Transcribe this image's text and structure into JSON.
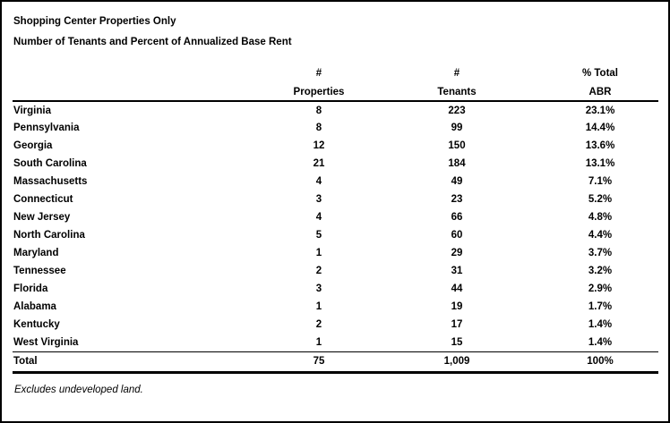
{
  "document": {
    "title_line1": "Shopping Center Properties Only",
    "title_line2": "Number of Tenants and Percent of Annualized Base Rent",
    "footnote": "Excludes undeveloped land."
  },
  "table": {
    "columns": [
      {
        "line1": "",
        "line2": ""
      },
      {
        "line1": "#",
        "line2": "Properties"
      },
      {
        "line1": "#",
        "line2": "Tenants"
      },
      {
        "line1": "% Total",
        "line2": "ABR"
      }
    ],
    "rows": [
      {
        "state": "Virginia",
        "properties": "8",
        "tenants": "223",
        "abr": "23.1%"
      },
      {
        "state": "Pennsylvania",
        "properties": "8",
        "tenants": "99",
        "abr": "14.4%"
      },
      {
        "state": "Georgia",
        "properties": "12",
        "tenants": "150",
        "abr": "13.6%"
      },
      {
        "state": "South Carolina",
        "properties": "21",
        "tenants": "184",
        "abr": "13.1%"
      },
      {
        "state": "Massachusetts",
        "properties": "4",
        "tenants": "49",
        "abr": "7.1%"
      },
      {
        "state": "Connecticut",
        "properties": "3",
        "tenants": "23",
        "abr": "5.2%"
      },
      {
        "state": "New Jersey",
        "properties": "4",
        "tenants": "66",
        "abr": "4.8%"
      },
      {
        "state": "North Carolina",
        "properties": "5",
        "tenants": "60",
        "abr": "4.4%"
      },
      {
        "state": "Maryland",
        "properties": "1",
        "tenants": "29",
        "abr": "3.7%"
      },
      {
        "state": "Tennessee",
        "properties": "2",
        "tenants": "31",
        "abr": "3.2%"
      },
      {
        "state": "Florida",
        "properties": "3",
        "tenants": "44",
        "abr": "2.9%"
      },
      {
        "state": "Alabama",
        "properties": "1",
        "tenants": "19",
        "abr": "1.7%"
      },
      {
        "state": "Kentucky",
        "properties": "2",
        "tenants": "17",
        "abr": "1.4%"
      },
      {
        "state": "West Virginia",
        "properties": "1",
        "tenants": "15",
        "abr": "1.4%"
      }
    ],
    "total": {
      "state": "Total",
      "properties": "75",
      "tenants": "1,009",
      "abr": "100%"
    }
  },
  "colors": {
    "text": "#000000",
    "background": "#ffffff",
    "border": "#000000"
  }
}
